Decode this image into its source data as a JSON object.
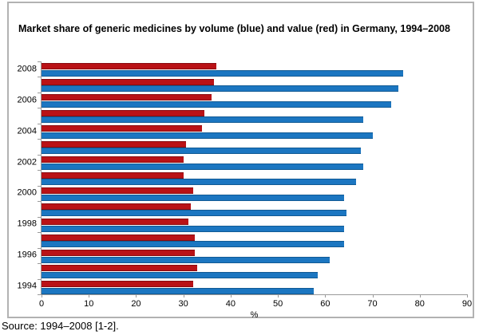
{
  "title": "Market share of generic medicines by volume (blue) and value (red) in Germany, 1994–2008",
  "source_note": "Source: 1994–2008 [1-2].",
  "colors": {
    "volume_blue": "#1b76c1",
    "value_red": "#b91216",
    "axis_gray": "#9a9a9a",
    "frame_border": "#b2b2b2"
  },
  "chart_data": {
    "type": "bar",
    "orientation": "horizontal",
    "title": "Market share of generic medicines by volume (blue) and value (red) in Germany, 1994–2008",
    "xlabel": "%",
    "xlim": [
      0,
      90
    ],
    "xticks": [
      0,
      10,
      20,
      30,
      40,
      50,
      60,
      70,
      80,
      90
    ],
    "grid": false,
    "legend": "none (encoded in title: blue = volume, red = value)",
    "categories_top_to_bottom": [
      "2008",
      "2007",
      "2006",
      "2005",
      "2004",
      "2003",
      "2002",
      "2001",
      "2000",
      "1999",
      "1998",
      "1997",
      "1996",
      "1995",
      "1994"
    ],
    "category_labels_shown": [
      "2008",
      "2006",
      "2004",
      "2002",
      "2000",
      "1998",
      "1996",
      "1994"
    ],
    "series": [
      {
        "name": "Volume (blue)",
        "color": "#1b76c1",
        "values": [
          76.5,
          75.5,
          74,
          68,
          70,
          67.5,
          68,
          66.5,
          64,
          64.5,
          64,
          64,
          61,
          58.5,
          57.5
        ]
      },
      {
        "name": "Value (red)",
        "color": "#b91216",
        "values": [
          37,
          36.5,
          36,
          34.5,
          34,
          30.5,
          30,
          30,
          32,
          31.5,
          31,
          32.5,
          32.5,
          33,
          32
        ]
      }
    ],
    "bar_order_within_group": [
      "Value (red)",
      "Volume (blue)"
    ]
  }
}
